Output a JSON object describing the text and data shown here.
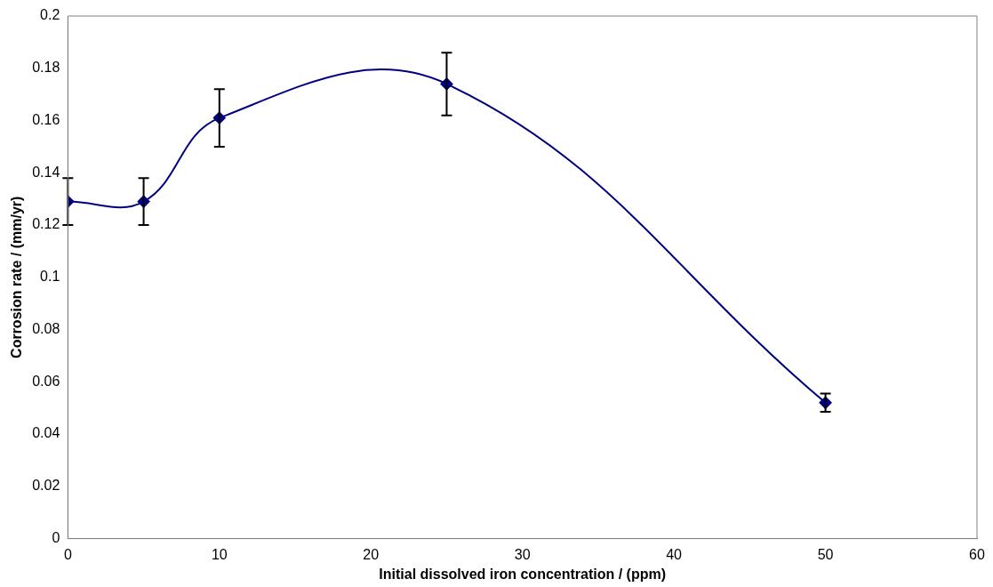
{
  "chart_data": {
    "type": "line",
    "xlabel": "Initial dissolved iron concentration / (ppm)",
    "ylabel": "Corrosion rate / (mm/yr)",
    "x": [
      0,
      5,
      10,
      25,
      50
    ],
    "series": [
      {
        "color": "#000080",
        "values": [
          0.129,
          0.129,
          0.161,
          0.174,
          0.052
        ],
        "errors": [
          0.009,
          0.009,
          0.011,
          0.012,
          0.0035
        ]
      }
    ],
    "xlim": [
      0,
      60
    ],
    "xticks": [
      0,
      10,
      20,
      30,
      40,
      50,
      60
    ],
    "ylim": [
      0,
      0.2
    ],
    "yticks": [
      0,
      0.02,
      0.04,
      0.06,
      0.08,
      0.1,
      0.12,
      0.14,
      0.16,
      0.18,
      0.2
    ],
    "grid": false,
    "legend": false,
    "marker": "diamond",
    "line_style": "solid"
  }
}
